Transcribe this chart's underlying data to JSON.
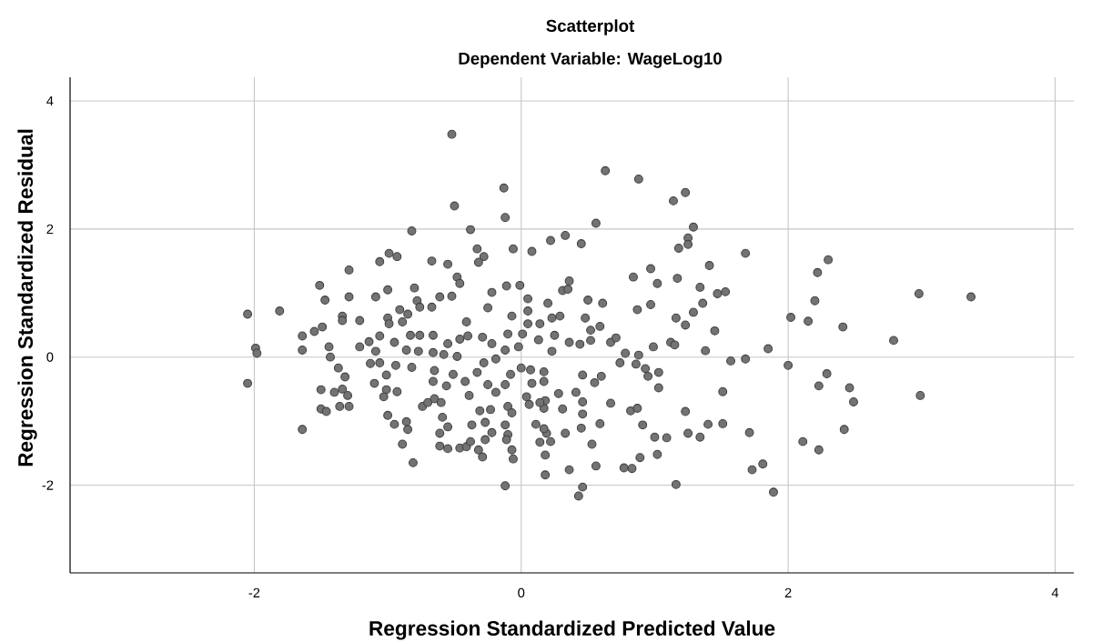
{
  "chart_data": {
    "type": "scatter",
    "title": "Scatterplot",
    "subtitle": "Dependent Variable: WageLog10",
    "xlabel": "Regression Standardized Predicted Value",
    "ylabel": "Regression Standardized Residual",
    "color": "#737373",
    "marker": "circle",
    "grid": true,
    "xlim": [
      -3.38,
      4.14
    ],
    "ylim": [
      -3.37,
      4.37
    ],
    "xticks": [
      -2,
      0,
      2,
      4
    ],
    "yticks": [
      -2,
      0,
      2,
      4
    ],
    "x": [
      -0.52,
      -0.5,
      -0.13,
      -0.12,
      -0.82,
      -0.38,
      -0.33,
      -0.28,
      -0.32,
      -0.99,
      -0.93,
      -1.06,
      -0.67,
      -0.55,
      -1.29,
      -0.48,
      -0.46,
      -1.51,
      -1.0,
      -0.8,
      -1.47,
      -1.29,
      -1.09,
      -0.61,
      -0.52,
      -0.78,
      -0.76,
      -0.67,
      -0.91,
      -0.85,
      -2.05,
      -1.81,
      -1.34,
      -1.34,
      -1.21,
      -1.0,
      -0.99,
      -0.89,
      -0.41,
      -1.49,
      -1.55,
      -1.64,
      -1.06,
      -0.83,
      -0.76,
      -0.66,
      -0.4,
      -0.29,
      -0.22,
      -0.25,
      -1.14,
      -0.95,
      -0.55,
      -0.46,
      -1.64,
      -1.44,
      -1.21,
      -1.09,
      -0.86,
      -0.77,
      -1.99,
      -1.98,
      -0.66,
      -0.58,
      -0.48,
      -0.22,
      0.63,
      0.88,
      1.14,
      1.23,
      0.56,
      1.29,
      1.25,
      1.25,
      1.18,
      1.68,
      -0.06,
      0.08,
      0.22,
      0.33,
      0.45,
      1.41,
      0.97,
      0.84,
      1.02,
      1.17,
      1.34,
      1.47,
      1.53,
      1.36,
      1.29,
      1.16,
      1.23,
      1.45,
      0.87,
      0.97,
      0.36,
      0.31,
      0.35,
      -0.01,
      -0.11,
      0.05,
      0.2,
      0.5,
      0.61,
      0.05,
      -0.07,
      0.05,
      0.14,
      0.23,
      0.29,
      0.48,
      0.59,
      0.52,
      -0.1,
      0.01,
      0.13,
      0.25,
      0.36,
      0.44,
      0.52,
      0.67,
      0.71,
      -0.12,
      -0.02,
      0.23,
      0.99,
      1.12,
      1.15,
      1.38,
      1.85,
      0.78,
      0.88,
      2.02,
      2.3,
      2.22,
      2.2,
      2.15,
      2.41,
      2.98,
      3.37,
      2.79,
      -2.05,
      -1.64,
      -1.5,
      -1.5,
      -1.46,
      -1.4,
      -1.34,
      -1.3,
      -1.36,
      -1.29,
      -1.37,
      -1.32,
      -1.43,
      -1.13,
      -1.06,
      -0.94,
      -1.01,
      -1.1,
      -1.01,
      -0.93,
      -1.03,
      -0.82,
      -1.0,
      -0.95,
      -0.86,
      -0.85,
      -0.89,
      -0.81,
      -0.74,
      -0.7,
      -0.65,
      -0.66,
      -0.65,
      -0.56,
      -0.6,
      -0.59,
      -0.55,
      -0.61,
      -0.61,
      -0.55,
      -0.51,
      -0.42,
      -0.39,
      -0.46,
      -0.41,
      -0.38,
      -0.32,
      -0.29,
      -0.37,
      -0.31,
      -0.27,
      -0.22,
      -0.27,
      -0.23,
      -0.25,
      -0.33,
      -0.28,
      -0.19,
      -0.19,
      -0.12,
      0.18,
      0.36,
      0.46,
      0.43,
      0.56,
      0.77,
      0.83,
      0.89,
      1.02,
      1.16,
      1.73,
      1.81,
      1.89,
      1.71,
      1.51,
      1.51,
      1.4,
      1.34,
      1.25,
      1.23,
      1.09,
      1.0,
      0.91,
      0.82,
      0.87,
      0.67,
      0.59,
      0.53,
      0.46,
      0.46,
      0.45,
      0.33,
      0.31,
      0.28,
      0.41,
      0.46,
      0.55,
      0.6,
      0.74,
      0.86,
      0.93,
      0.95,
      1.03,
      1.03,
      1.57,
      1.68,
      2.0,
      0.18,
      0.14,
      0.22,
      0.19,
      0.11,
      0.17,
      0.17,
      0.18,
      0.14,
      0.04,
      0.06,
      0.08,
      0.17,
      0.17,
      0.07,
      0.0,
      -0.08,
      -0.12,
      -0.1,
      -0.07,
      -0.12,
      -0.1,
      -0.07,
      -0.06,
      -0.11,
      2.29,
      2.23,
      2.46,
      2.49,
      2.99,
      2.42,
      2.11,
      2.23
    ],
    "values": [
      3.48,
      2.36,
      2.64,
      2.18,
      1.97,
      1.99,
      1.69,
      1.57,
      1.48,
      1.62,
      1.57,
      1.49,
      1.5,
      1.45,
      1.36,
      1.25,
      1.15,
      1.12,
      1.05,
      1.08,
      0.89,
      0.94,
      0.94,
      0.94,
      0.95,
      0.88,
      0.78,
      0.78,
      0.74,
      0.67,
      0.67,
      0.72,
      0.64,
      0.57,
      0.57,
      0.61,
      0.52,
      0.55,
      0.55,
      0.47,
      0.4,
      0.33,
      0.33,
      0.34,
      0.34,
      0.34,
      0.33,
      0.31,
      1.01,
      0.77,
      0.24,
      0.23,
      0.21,
      0.28,
      0.11,
      0.16,
      0.16,
      0.09,
      0.11,
      0.09,
      0.14,
      0.06,
      0.07,
      0.04,
      0.01,
      0.21,
      2.91,
      2.78,
      2.44,
      2.57,
      2.09,
      2.03,
      1.86,
      1.76,
      1.7,
      1.62,
      1.69,
      1.65,
      1.82,
      1.9,
      1.77,
      1.43,
      1.38,
      1.25,
      1.15,
      1.23,
      1.09,
      0.99,
      1.02,
      0.84,
      0.7,
      0.61,
      0.5,
      0.41,
      0.74,
      0.82,
      1.19,
      1.04,
      1.06,
      1.12,
      1.11,
      0.91,
      0.84,
      0.89,
      0.84,
      0.72,
      0.64,
      0.52,
      0.52,
      0.61,
      0.64,
      0.61,
      0.48,
      0.42,
      0.36,
      0.36,
      0.27,
      0.34,
      0.23,
      0.2,
      0.26,
      0.23,
      0.3,
      0.11,
      0.16,
      0.09,
      0.16,
      0.23,
      0.19,
      0.1,
      0.13,
      0.06,
      0.03,
      0.62,
      1.52,
      1.32,
      0.88,
      0.56,
      0.47,
      0.99,
      0.94,
      0.26,
      -0.41,
      -1.13,
      -0.51,
      -0.81,
      -0.85,
      -0.55,
      -0.5,
      -0.6,
      -0.77,
      -0.77,
      -0.17,
      -0.31,
      0.0,
      -0.1,
      -0.09,
      -0.13,
      -0.28,
      -0.41,
      -0.51,
      -0.54,
      -0.62,
      -0.16,
      -0.91,
      -1.05,
      -1.01,
      -1.13,
      -1.36,
      -1.65,
      -0.77,
      -0.71,
      -0.65,
      -0.38,
      -0.21,
      -0.45,
      -0.71,
      -0.94,
      -1.09,
      -1.19,
      -1.39,
      -1.43,
      -0.27,
      -0.38,
      -0.6,
      -1.42,
      -1.4,
      -1.32,
      -1.45,
      -1.56,
      -1.06,
      -0.84,
      -1.02,
      -1.18,
      -1.29,
      -0.82,
      -0.43,
      -0.24,
      -0.09,
      -0.03,
      -0.55,
      -2.01,
      -1.84,
      -1.76,
      -2.03,
      -2.17,
      -1.7,
      -1.73,
      -1.74,
      -1.57,
      -1.52,
      -1.99,
      -1.76,
      -1.67,
      -2.11,
      -1.18,
      -1.04,
      -0.54,
      -1.05,
      -1.25,
      -1.19,
      -0.85,
      -1.26,
      -1.25,
      -1.06,
      -0.84,
      -0.8,
      -0.72,
      -1.04,
      -1.36,
      -0.7,
      -0.89,
      -1.11,
      -1.19,
      -0.81,
      -0.57,
      -0.55,
      -0.28,
      -0.4,
      -0.3,
      -0.09,
      -0.11,
      -0.18,
      -0.3,
      -0.24,
      -0.48,
      -0.06,
      -0.03,
      -0.13,
      -1.53,
      -1.33,
      -1.32,
      -1.19,
      -1.05,
      -1.12,
      -0.8,
      -0.68,
      -0.71,
      -0.62,
      -0.74,
      -0.41,
      -0.38,
      -0.23,
      -0.2,
      -0.17,
      -0.27,
      -0.43,
      -0.77,
      -0.87,
      -1.06,
      -1.21,
      -1.45,
      -1.59,
      -1.29,
      -0.26,
      -0.45,
      -0.48,
      -0.7,
      -0.6,
      -1.13,
      -1.32,
      -1.45
    ]
  }
}
